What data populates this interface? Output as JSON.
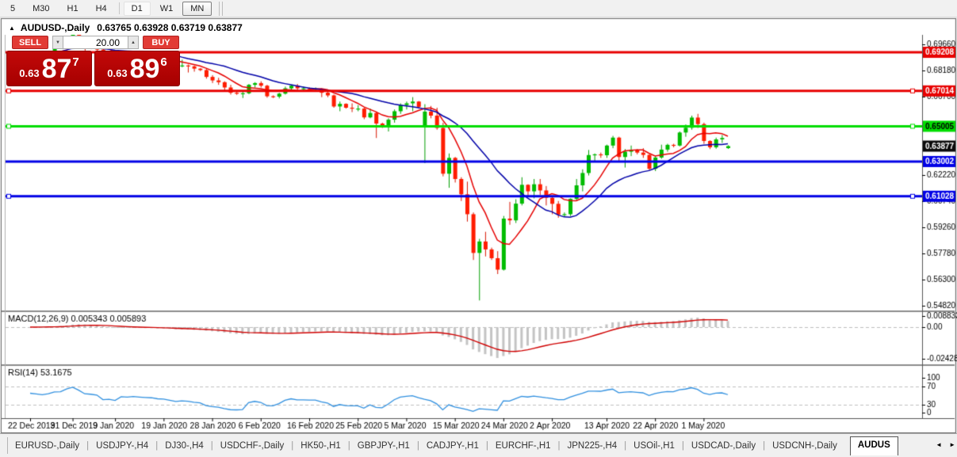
{
  "toolbar": {
    "items": [
      "5",
      "M30",
      "H1",
      "H4",
      "|",
      "D1",
      "W1",
      "MN"
    ],
    "highlighted": "D1",
    "active": "MN"
  },
  "chart_window": {
    "collapse_icon": "▲",
    "symbol_title": "AUDUSD-,Daily",
    "ohlc_line": "0.63765 0.63928 0.63719 0.63877"
  },
  "trade_panel": {
    "sell_label": "SELL",
    "buy_label": "BUY",
    "volume": "20.00",
    "down_icon": "▼",
    "up_icon": "▲",
    "sell_frac": "0.63",
    "sell_big": "87",
    "sell_sup": "7",
    "buy_frac": "0.63",
    "buy_big": "89",
    "buy_sup": "6"
  },
  "chart_data": {
    "type": "candlestick",
    "symbol": "AUDUSD-",
    "timeframe": "Daily",
    "title": "AUDUSD-,Daily 0.63765 0.63928 0.63719 0.63877",
    "ohlc_today": {
      "open": 0.63765,
      "high": 0.63928,
      "low": 0.63719,
      "close": 0.63877
    },
    "current_price": 0.63877,
    "price_axis_ticks": [
      0.6966,
      0.6818,
      0.667,
      0.6222,
      0.6074,
      0.5926,
      0.5778,
      0.563,
      0.5482
    ],
    "horizontal_lines": [
      {
        "price": 0.69208,
        "color": "#E80000",
        "selected": false,
        "label_text": "light"
      },
      {
        "price": 0.67014,
        "color": "#E80000",
        "selected": true,
        "label_text": "light"
      },
      {
        "price": 0.65005,
        "color": "#00DD00",
        "selected": true,
        "label_text": "dark"
      },
      {
        "price": 0.63002,
        "color": "#0000E6",
        "selected": false,
        "label_text": "light"
      },
      {
        "price": 0.61028,
        "color": "#0000E6",
        "selected": true,
        "label_text": "light"
      }
    ],
    "colors": {
      "up": "#00BC00",
      "up_stroke": "#009E00",
      "down": "#FF1C00",
      "down_stroke": "#D81500"
    },
    "moving_averages": [
      {
        "period": 7,
        "color": "#E60000"
      },
      {
        "period": 18,
        "color": "#0000A8"
      }
    ],
    "x_labels": [
      {
        "text": "22 Dec 2019",
        "bar": 0
      },
      {
        "text": "31 Dec 2019",
        "bar": 7
      },
      {
        "text": "9 Jan 2020",
        "bar": 14
      },
      {
        "text": "19 Jan 2020",
        "bar": 22
      },
      {
        "text": "28 Jan 2020",
        "bar": 30
      },
      {
        "text": "6 Feb 2020",
        "bar": 38
      },
      {
        "text": "16 Feb 2020",
        "bar": 46
      },
      {
        "text": "25 Feb 2020",
        "bar": 54
      },
      {
        "text": "5 Mar 2020",
        "bar": 62
      },
      {
        "text": "15 Mar 2020",
        "bar": 70
      },
      {
        "text": "24 Mar 2020",
        "bar": 78
      },
      {
        "text": "2 Apr 2020",
        "bar": 86
      },
      {
        "text": "13 Apr 2020",
        "bar": 95
      },
      {
        "text": "22 Apr 2020",
        "bar": 103
      },
      {
        "text": "1 May 2020",
        "bar": 111
      }
    ],
    "candles": [
      [
        0.69,
        0.6904,
        0.6896,
        0.6901
      ],
      [
        0.6901,
        0.6925,
        0.6895,
        0.692
      ],
      [
        0.692,
        0.6928,
        0.6906,
        0.6912
      ],
      [
        0.6912,
        0.6926,
        0.6904,
        0.6922
      ],
      [
        0.6922,
        0.6952,
        0.6918,
        0.6946
      ],
      [
        0.6946,
        0.6951,
        0.6941,
        0.6948
      ],
      [
        0.6948,
        0.6992,
        0.6944,
        0.6988
      ],
      [
        0.6988,
        0.7024,
        0.6982,
        0.702
      ],
      [
        0.702,
        0.703,
        0.6984,
        0.6992
      ],
      [
        0.6992,
        0.6998,
        0.693,
        0.6951
      ],
      [
        0.6951,
        0.6956,
        0.694,
        0.6946
      ],
      [
        0.6946,
        0.6962,
        0.6924,
        0.6936
      ],
      [
        0.6936,
        0.6941,
        0.6862,
        0.6871
      ],
      [
        0.6871,
        0.6882,
        0.685,
        0.6874
      ],
      [
        0.6874,
        0.6879,
        0.6838,
        0.6856
      ],
      [
        0.6856,
        0.6906,
        0.6851,
        0.69
      ],
      [
        0.69,
        0.6904,
        0.689,
        0.6895
      ],
      [
        0.6895,
        0.6912,
        0.6882,
        0.6901
      ],
      [
        0.6901,
        0.6906,
        0.6884,
        0.6895
      ],
      [
        0.6895,
        0.6901,
        0.6871,
        0.689
      ],
      [
        0.689,
        0.6896,
        0.6871,
        0.6886
      ],
      [
        0.6886,
        0.6891,
        0.6861,
        0.6874
      ],
      [
        0.6874,
        0.6879,
        0.6867,
        0.6871
      ],
      [
        0.6871,
        0.688,
        0.6846,
        0.6856
      ],
      [
        0.6856,
        0.6866,
        0.6826,
        0.6841
      ],
      [
        0.6841,
        0.6879,
        0.6836,
        0.6846
      ],
      [
        0.6846,
        0.6851,
        0.6806,
        0.6841
      ],
      [
        0.6841,
        0.6846,
        0.6811,
        0.6828
      ],
      [
        0.6828,
        0.6831,
        0.6814,
        0.682
      ],
      [
        0.682,
        0.6826,
        0.6771,
        0.6781
      ],
      [
        0.6781,
        0.6791,
        0.6746,
        0.6761
      ],
      [
        0.6761,
        0.6776,
        0.6736,
        0.6751
      ],
      [
        0.6751,
        0.6756,
        0.6701,
        0.6721
      ],
      [
        0.6721,
        0.6736,
        0.6681,
        0.6691
      ],
      [
        0.6691,
        0.6696,
        0.6679,
        0.6686
      ],
      [
        0.6686,
        0.6701,
        0.6661,
        0.6688
      ],
      [
        0.6688,
        0.6741,
        0.6683,
        0.6736
      ],
      [
        0.6736,
        0.6751,
        0.6721,
        0.6746
      ],
      [
        0.6746,
        0.6756,
        0.6721,
        0.6731
      ],
      [
        0.6731,
        0.6736,
        0.6663,
        0.6671
      ],
      [
        0.6671,
        0.6676,
        0.6661,
        0.6669
      ],
      [
        0.6669,
        0.6691,
        0.6659,
        0.6686
      ],
      [
        0.6686,
        0.6726,
        0.6681,
        0.6716
      ],
      [
        0.6716,
        0.6736,
        0.6706,
        0.6731
      ],
      [
        0.6731,
        0.6741,
        0.6701,
        0.6716
      ],
      [
        0.6716,
        0.6726,
        0.6701,
        0.6716
      ],
      [
        0.6716,
        0.6721,
        0.6709,
        0.6714
      ],
      [
        0.6714,
        0.6721,
        0.6696,
        0.6714
      ],
      [
        0.6714,
        0.6716,
        0.6666,
        0.6691
      ],
      [
        0.6691,
        0.6701,
        0.6666,
        0.6676
      ],
      [
        0.6676,
        0.6681,
        0.6606,
        0.6613
      ],
      [
        0.6613,
        0.6641,
        0.6586,
        0.6628
      ],
      [
        0.6628,
        0.6631,
        0.6601,
        0.6606
      ],
      [
        0.6606,
        0.6631,
        0.6581,
        0.6601
      ],
      [
        0.6601,
        0.6621,
        0.6586,
        0.6601
      ],
      [
        0.6601,
        0.6606,
        0.6541,
        0.6551
      ],
      [
        0.6551,
        0.6601,
        0.6546,
        0.6576
      ],
      [
        0.6576,
        0.6581,
        0.6434,
        0.6516
      ],
      [
        0.6516,
        0.6521,
        0.6491,
        0.6506
      ],
      [
        0.6506,
        0.6546,
        0.6471,
        0.6538
      ],
      [
        0.6538,
        0.6596,
        0.6521,
        0.6586
      ],
      [
        0.6586,
        0.6631,
        0.6571,
        0.6621
      ],
      [
        0.6621,
        0.6641,
        0.6596,
        0.6631
      ],
      [
        0.6631,
        0.6666,
        0.6586,
        0.6641
      ],
      [
        0.6641,
        0.6644,
        0.6601,
        0.6611
      ],
      [
        0.65,
        0.6626,
        0.6291,
        0.6584
      ],
      [
        0.6584,
        0.6616,
        0.6546,
        0.6561
      ],
      [
        0.6561,
        0.6606,
        0.6481,
        0.6491
      ],
      [
        0.6491,
        0.6521,
        0.6216,
        0.6231
      ],
      [
        0.6231,
        0.6346,
        0.6151,
        0.6321
      ],
      [
        0.6321,
        0.6326,
        0.6181,
        0.6201
      ],
      [
        0.6201,
        0.6211,
        0.6076,
        0.6114
      ],
      [
        0.6114,
        0.6186,
        0.5959,
        0.6001
      ],
      [
        0.6001,
        0.6011,
        0.5741,
        0.5781
      ],
      [
        0.5781,
        0.5861,
        0.5511,
        0.5846
      ],
      [
        0.5846,
        0.5901,
        0.5761,
        0.5801
      ],
      [
        0.5801,
        0.5811,
        0.5741,
        0.5751
      ],
      [
        0.5751,
        0.5791,
        0.5661,
        0.5686
      ],
      [
        0.5686,
        0.5991,
        0.5681,
        0.5976
      ],
      [
        0.5976,
        0.6071,
        0.5941,
        0.5966
      ],
      [
        0.5966,
        0.6086,
        0.5951,
        0.6061
      ],
      [
        0.6061,
        0.6211,
        0.6051,
        0.6168
      ],
      [
        0.6168,
        0.6171,
        0.6101,
        0.6131
      ],
      [
        0.6131,
        0.6201,
        0.6091,
        0.6171
      ],
      [
        0.6171,
        0.6201,
        0.6111,
        0.6136
      ],
      [
        0.6136,
        0.6161,
        0.6051,
        0.6094
      ],
      [
        0.6094,
        0.6106,
        0.6001,
        0.606
      ],
      [
        0.606,
        0.6076,
        0.5981,
        0.5999
      ],
      [
        0.5999,
        0.6011,
        0.5986,
        0.6001
      ],
      [
        0.6001,
        0.6091,
        0.5991,
        0.6088
      ],
      [
        0.6088,
        0.6201,
        0.6081,
        0.6165
      ],
      [
        0.6165,
        0.6256,
        0.6131,
        0.6235
      ],
      [
        0.6235,
        0.6366,
        0.6221,
        0.6337
      ],
      [
        0.6337,
        0.6346,
        0.6301,
        0.6341
      ],
      [
        0.6341,
        0.6351,
        0.6321,
        0.6336
      ],
      [
        0.6336,
        0.6396,
        0.6321,
        0.6391
      ],
      [
        0.6391,
        0.6446,
        0.6376,
        0.6436
      ],
      [
        0.6436,
        0.6441,
        0.6301,
        0.6326
      ],
      [
        0.6326,
        0.6371,
        0.6266,
        0.6356
      ],
      [
        0.6356,
        0.6391,
        0.6331,
        0.6366
      ],
      [
        0.6366,
        0.6371,
        0.6341,
        0.6351
      ],
      [
        0.6351,
        0.6376,
        0.6321,
        0.6338
      ],
      [
        0.6338,
        0.6341,
        0.6251,
        0.6259
      ],
      [
        0.6259,
        0.6331,
        0.6246,
        0.6323
      ],
      [
        0.6323,
        0.6396,
        0.6316,
        0.6368
      ],
      [
        0.6368,
        0.6401,
        0.6356,
        0.6395
      ],
      [
        0.6395,
        0.6401,
        0.6381,
        0.6391
      ],
      [
        0.6391,
        0.6471,
        0.6386,
        0.6465
      ],
      [
        0.6465,
        0.6511,
        0.6441,
        0.6492
      ],
      [
        0.6492,
        0.6561,
        0.6481,
        0.655
      ],
      [
        0.655,
        0.6571,
        0.6491,
        0.6513
      ],
      [
        0.6513,
        0.6521,
        0.6401,
        0.6417
      ],
      [
        0.6417,
        0.6421,
        0.6371,
        0.6381
      ],
      [
        0.6381,
        0.6436,
        0.6373,
        0.6426
      ],
      [
        0.6426,
        0.6451,
        0.6406,
        0.6434
      ],
      [
        0.63765,
        0.63928,
        0.63719,
        0.63877
      ]
    ],
    "macd": {
      "label": "MACD(12,26,9) 0.005343 0.005893",
      "fast": 12,
      "slow": 26,
      "signal": 9,
      "axis_labels": [
        "0.008833",
        "0.00",
        "-0.02428"
      ],
      "bar_color": "#C4C4C4",
      "line_color": "#D00000"
    },
    "rsi": {
      "label": "RSI(14) 53.1675",
      "period": 14,
      "value": 53.1675,
      "axis_labels": [
        "100",
        "70",
        "30",
        "0"
      ],
      "levels": [
        70,
        30
      ],
      "line_color": "#3090E0"
    }
  },
  "tabbar": {
    "tabs": [
      "EURUSD-,Daily",
      "USDJPY-,H4",
      "DJ30-,H4",
      "USDCHF-,Daily",
      "HK50-,H1",
      "GBPJPY-,H1",
      "CADJPY-,H1",
      "EURCHF-,H1",
      "JPN225-,H4",
      "USOil-,H1",
      "USDCAD-,Daily",
      "USDCNH-,Daily"
    ],
    "active_tab": "AUDUS",
    "left_icon": "◄",
    "right_icon": "►"
  }
}
